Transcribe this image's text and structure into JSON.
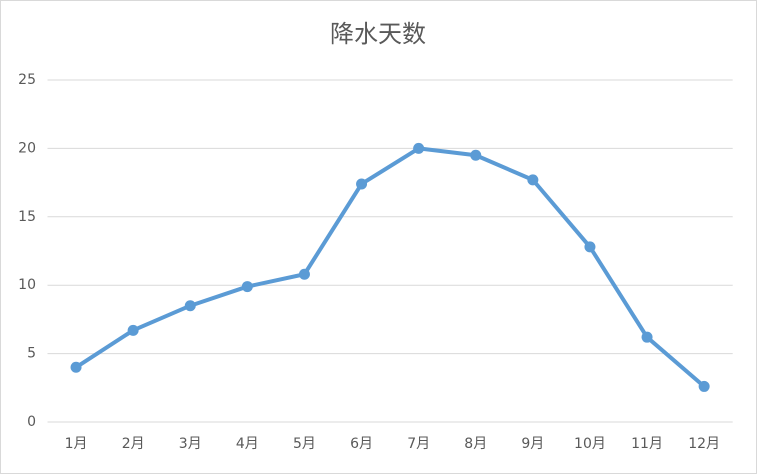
{
  "chart_data": {
    "type": "line",
    "title": "降水天数",
    "categories": [
      "1月",
      "2月",
      "3月",
      "4月",
      "5月",
      "6月",
      "7月",
      "8月",
      "9月",
      "10月",
      "11月",
      "12月"
    ],
    "values": [
      4.0,
      6.7,
      8.5,
      9.9,
      10.8,
      17.4,
      20.0,
      19.5,
      17.7,
      12.8,
      6.2,
      2.6
    ],
    "color": "#5b9bd5",
    "ylim": [
      0,
      25
    ],
    "yticks": [
      0,
      5,
      10,
      15,
      20,
      25
    ],
    "grid": true
  }
}
